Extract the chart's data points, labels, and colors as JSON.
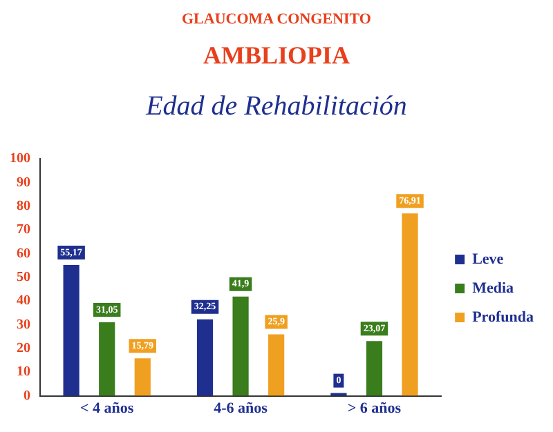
{
  "chart_data": {
    "type": "bar",
    "title": "GLAUCOMA  CONGENITO",
    "subtitle": "AMBLIOPIA",
    "annotations": [
      "Edad  de  Rehabilitación"
    ],
    "categories": [
      "< 4 años",
      "4-6 años",
      "> 6 años"
    ],
    "series": [
      {
        "name": "Leve",
        "color": "#1f2f8f",
        "values": [
          55.17,
          32.25,
          0
        ],
        "value_labels": [
          "55,17",
          "32,25",
          "0"
        ]
      },
      {
        "name": "Media",
        "color": "#3a7d1c",
        "values": [
          31.05,
          41.9,
          23.07
        ],
        "value_labels": [
          "31,05",
          "41,9",
          "23,07"
        ]
      },
      {
        "name": "Profunda",
        "color": "#f0a020",
        "values": [
          15.79,
          25.9,
          76.91
        ],
        "value_labels": [
          "15,79",
          "25,9",
          "76,91"
        ]
      }
    ],
    "ylim": [
      0,
      100
    ],
    "yticks": [
      0,
      10,
      20,
      30,
      40,
      50,
      60,
      70,
      80,
      90,
      100
    ],
    "grid": false,
    "legend": "right"
  }
}
